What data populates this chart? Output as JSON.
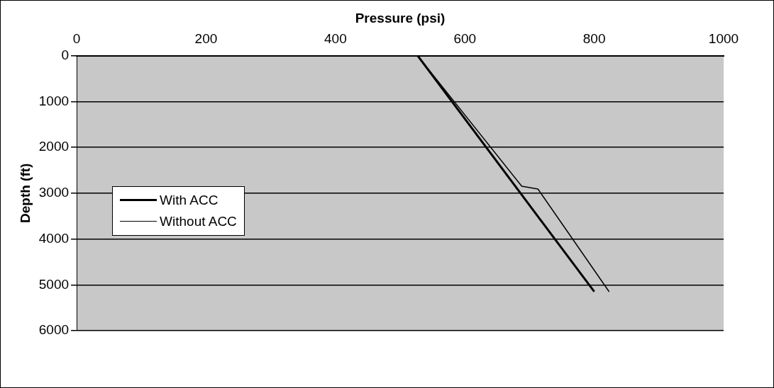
{
  "chart_data": {
    "type": "line",
    "xlabel": "Pressure (psi)",
    "ylabel": "Depth (ft)",
    "xlim": [
      0,
      1000
    ],
    "xticks": [
      0,
      200,
      400,
      600,
      800,
      1000
    ],
    "ylim": [
      6000,
      0
    ],
    "yticks": [
      0,
      1000,
      2000,
      3000,
      4000,
      5000,
      6000
    ],
    "grid": "y",
    "legend": "left",
    "marker": "none",
    "line_style": "solid",
    "series": [
      {
        "name": "With ACC",
        "color": "#000000",
        "x": [
          527,
          800
        ],
        "values": [
          0,
          5150
        ]
      },
      {
        "name": "Without ACC",
        "color": "#000000",
        "x": [
          527,
          688,
          713,
          823
        ],
        "values": [
          0,
          2850,
          2910,
          5150
        ]
      }
    ]
  }
}
